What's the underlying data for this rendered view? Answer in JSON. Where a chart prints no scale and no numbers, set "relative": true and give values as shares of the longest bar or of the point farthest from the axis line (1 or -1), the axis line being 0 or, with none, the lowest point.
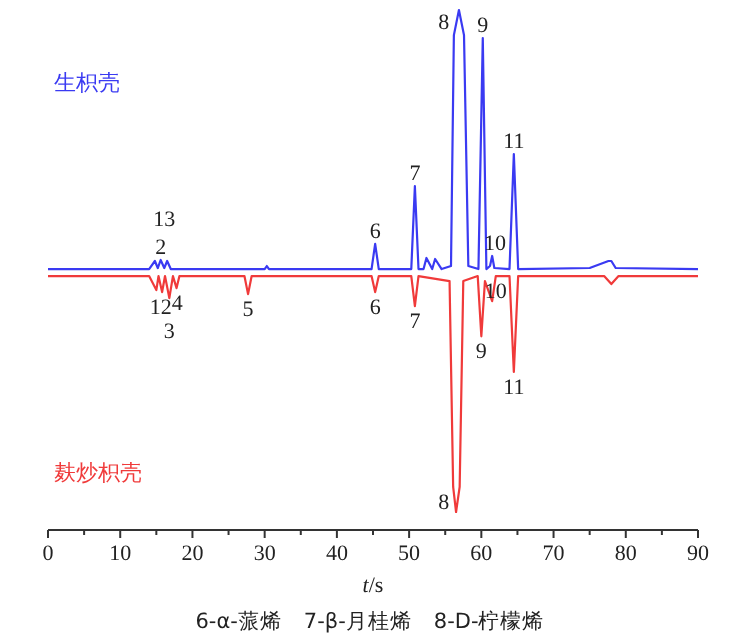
{
  "chart_data": {
    "type": "line",
    "relative": true,
    "xlabel": "t/s",
    "xlim": [
      0,
      90
    ],
    "xticks": [
      0,
      {
        "value": 5,
        "label": null
      },
      10,
      {
        "value": 15,
        "label": null
      },
      20,
      {
        "value": 25,
        "label": null
      },
      30,
      {
        "value": 35,
        "label": null
      },
      40,
      {
        "value": 45,
        "label": null
      },
      50,
      {
        "value": 55,
        "label": null
      },
      60,
      {
        "value": 65,
        "label": null
      },
      70,
      {
        "value": 75,
        "label": null
      },
      80,
      {
        "value": 85,
        "label": null
      },
      90
    ],
    "series": [
      {
        "name": "生枳壳",
        "color": "#3a3af2",
        "x": [
          0,
          14,
          14.8,
          15.2,
          15.6,
          16.1,
          16.5,
          17,
          17.5,
          30,
          30.3,
          30.6,
          44.8,
          45.3,
          45.8,
          50.3,
          50.8,
          51.3,
          52,
          52.4,
          53.2,
          53.6,
          54.5,
          55.8,
          56.2,
          56.9,
          57.6,
          58.2,
          59.6,
          60.2,
          60.7,
          61.2,
          61.5,
          61.8,
          63.9,
          64.5,
          65.1,
          75,
          77.6,
          78,
          78.6,
          90
        ],
        "values": [
          0.484,
          0.484,
          0.5,
          0.486,
          0.502,
          0.486,
          0.5,
          0.484,
          0.484,
          0.484,
          0.49,
          0.484,
          0.484,
          0.534,
          0.484,
          0.484,
          0.649,
          0.484,
          0.484,
          0.506,
          0.484,
          0.504,
          0.484,
          0.49,
          0.95,
          1.0,
          0.95,
          0.49,
          0.484,
          0.944,
          0.484,
          0.49,
          0.51,
          0.486,
          0.484,
          0.713,
          0.484,
          0.486,
          0.5,
          0.5,
          0.486,
          0.484
        ]
      },
      {
        "name": "麸炒枳壳",
        "color": "#f03a3a",
        "x": [
          0,
          14,
          15,
          15.3,
          15.8,
          16.2,
          16.8,
          17.3,
          17.8,
          18.2,
          18.6,
          27.2,
          27.7,
          28.2,
          44.8,
          45.3,
          45.8,
          50.3,
          50.8,
          51.3,
          55.6,
          56.1,
          56.5,
          57.0,
          57.5,
          59.5,
          60.0,
          60.5,
          61.0,
          61.5,
          62.0,
          63.9,
          64.5,
          65.1,
          77,
          78,
          79,
          90
        ],
        "values": [
          0.47,
          0.47,
          0.442,
          0.47,
          0.438,
          0.47,
          0.426,
          0.47,
          0.446,
          0.47,
          0.47,
          0.47,
          0.434,
          0.47,
          0.47,
          0.438,
          0.47,
          0.47,
          0.41,
          0.47,
          0.46,
          0.05,
          0,
          0.05,
          0.46,
          0.47,
          0.35,
          0.46,
          0.44,
          0.42,
          0.47,
          0.47,
          0.279,
          0.47,
          0.47,
          0.454,
          0.47,
          0.47
        ]
      }
    ],
    "annotations": [
      {
        "text": "2",
        "x": 15.6,
        "y": 0.502
      },
      {
        "text": "13",
        "x": 16.1,
        "y": 0.486
      },
      {
        "text": "6",
        "x": 45.3,
        "y": 0.534
      },
      {
        "text": "7",
        "x": 50.8,
        "y": 0.649
      },
      {
        "text": "8",
        "x": 54.8,
        "y": 0.95
      },
      {
        "text": "9",
        "x": 60.2,
        "y": 0.944
      },
      {
        "text": "10",
        "x": 61.9,
        "y": 0.51
      },
      {
        "text": "11",
        "x": 64.5,
        "y": 0.713
      },
      {
        "text": "12",
        "x": 15.6,
        "y": 0.438
      },
      {
        "text": "4",
        "x": 17.9,
        "y": 0.446
      },
      {
        "text": "3",
        "x": 16.8,
        "y": 0.426
      },
      {
        "text": "5",
        "x": 27.7,
        "y": 0.434
      },
      {
        "text": "6",
        "x": 45.3,
        "y": 0.438
      },
      {
        "text": "7",
        "x": 50.8,
        "y": 0.41
      },
      {
        "text": "8",
        "x": 54.8,
        "y": 0.05
      },
      {
        "text": "9",
        "x": 60.0,
        "y": 0.35
      },
      {
        "text": "10",
        "x": 62.0,
        "y": 0.47
      },
      {
        "text": "11",
        "x": 64.5,
        "y": 0.279
      },
      "6-α-蒎烯　7-β-月桂烯　8-D-柠檬烯"
    ]
  }
}
